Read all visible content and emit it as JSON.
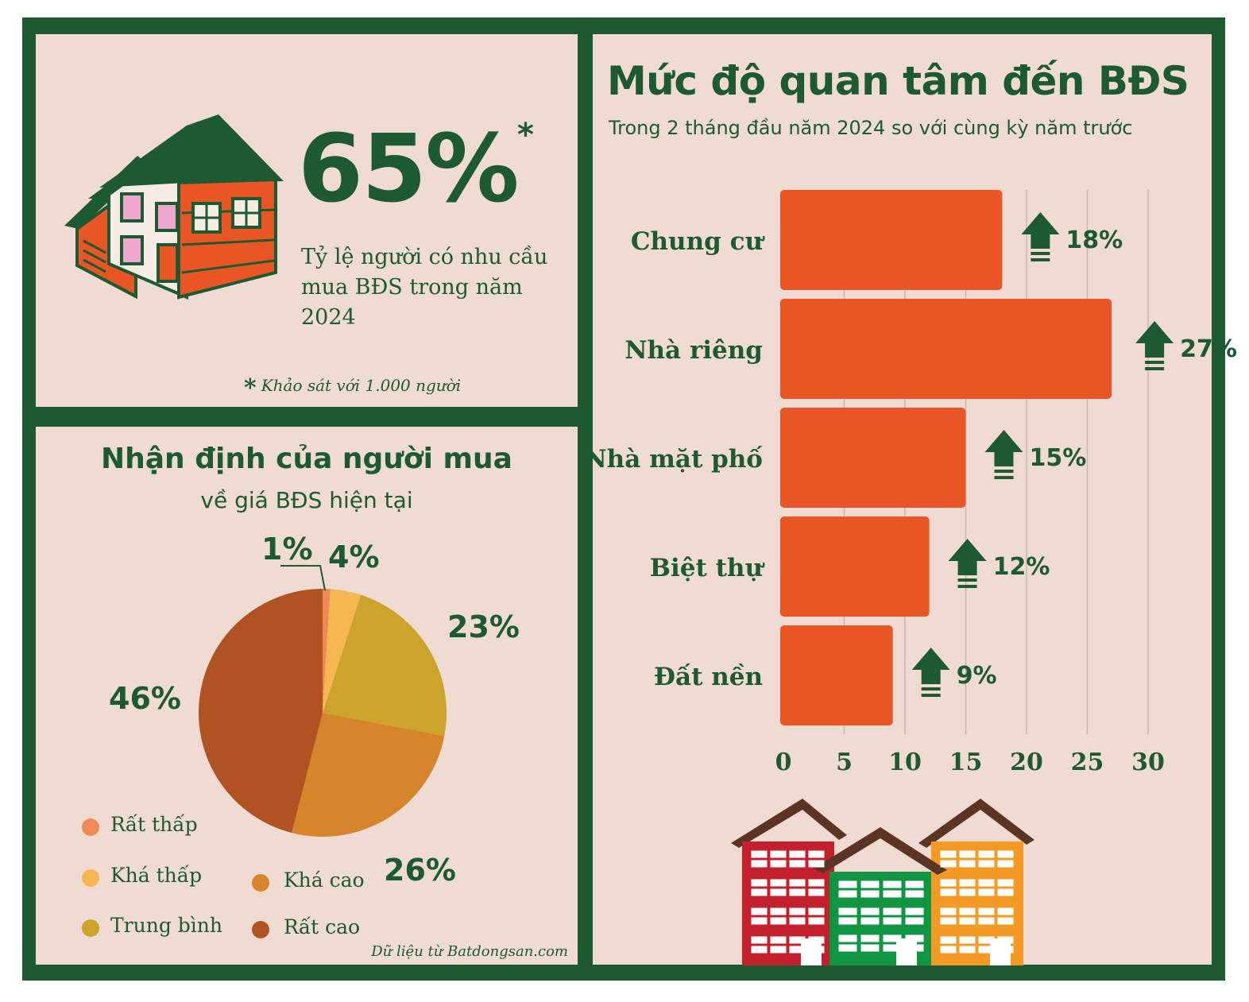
{
  "top": {
    "headline_value": "65%",
    "asterisk": "*",
    "description": "Tỷ lệ người có nhu cầu mua BĐS trong năm 2024",
    "footnote_mark": "*",
    "footnote": "Khảo sát với 1.000 người"
  },
  "pie": {
    "title": "Nhận định của người mua",
    "subtitle": "về giá BĐS hiện tại",
    "source": "Dữ liệu từ Batdongsan.com"
  },
  "bar": {
    "title": "Mức độ quan tâm đến BĐS",
    "subtitle": "Trong 2 tháng đầu năm 2024 so với cùng kỳ năm trước"
  },
  "colors": {
    "dark_green": "#1d5a32",
    "background": "#efdbd2",
    "bar_orange": "#ea5526"
  },
  "chart_data": [
    {
      "type": "pie",
      "title": "Nhận định của người mua",
      "subtitle": "về giá BĐS hiện tại",
      "slices": [
        {
          "name": "Rất thấp",
          "value": 1,
          "label": "1%",
          "color": "#ee8a55"
        },
        {
          "name": "Khá thấp",
          "value": 4,
          "label": "4%",
          "color": "#f6b752"
        },
        {
          "name": "Trung bình",
          "value": 23,
          "label": "23%",
          "color": "#cca42c"
        },
        {
          "name": "Khá cao",
          "value": 26,
          "label": "26%",
          "color": "#d7852a"
        },
        {
          "name": "Rất cao",
          "value": 46,
          "label": "46%",
          "color": "#b05224"
        }
      ],
      "legend_placement": "bottom-left"
    },
    {
      "type": "bar",
      "orientation": "horizontal",
      "title": "Mức độ quan tâm đến BĐS",
      "subtitle": "Trong 2 tháng đầu năm 2024 so với cùng kỳ năm trước",
      "categories": [
        "Chung cư",
        "Nhà riêng",
        "Nhà mặt phố",
        "Biệt thự",
        "Đất nền"
      ],
      "values": [
        18,
        27,
        15,
        12,
        9
      ],
      "data_labels": [
        "18%",
        "27%",
        "15%",
        "12%",
        "9%"
      ],
      "xlim": [
        0,
        30
      ],
      "x_ticks": [
        0,
        5,
        10,
        15,
        20,
        25,
        30
      ],
      "tick_labels": [
        "0",
        "5",
        "10",
        "15",
        "20",
        "25",
        "30"
      ],
      "grid": true,
      "trend": "up"
    }
  ]
}
